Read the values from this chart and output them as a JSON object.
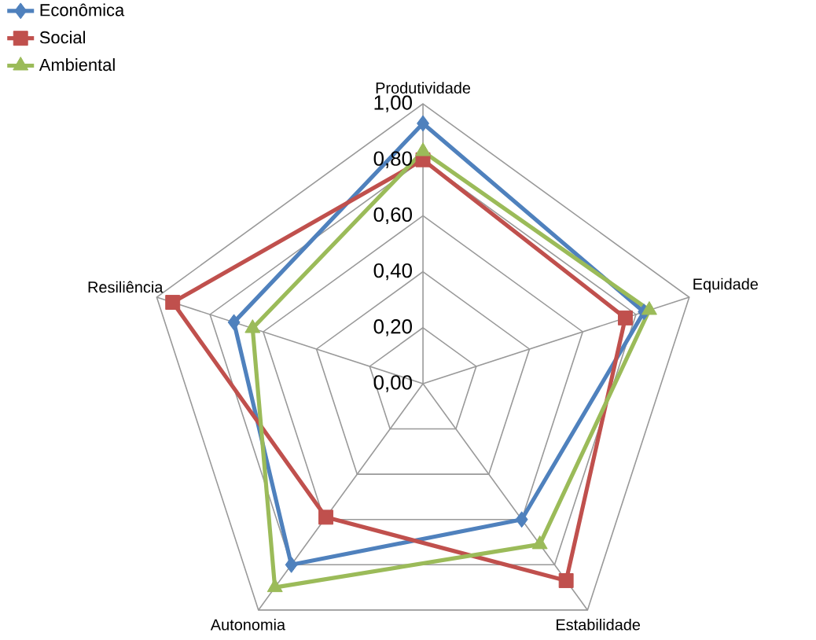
{
  "chart_data": {
    "type": "radar",
    "categories": [
      "Produtividade",
      "Equidade",
      "Estabilidade",
      "Autonomia",
      "Resiliência"
    ],
    "series": [
      {
        "name": "Econômica",
        "color": "#4f81bd",
        "marker": "diamond",
        "values": [
          0.93,
          0.83,
          0.6,
          0.8,
          0.71
        ]
      },
      {
        "name": "Social",
        "color": "#c0504d",
        "marker": "square",
        "values": [
          0.8,
          0.76,
          0.87,
          0.59,
          0.94
        ]
      },
      {
        "name": "Ambiental",
        "color": "#9bbb59",
        "marker": "triangle",
        "values": [
          0.83,
          0.85,
          0.71,
          0.9,
          0.64
        ]
      }
    ],
    "ylim": [
      0,
      1
    ],
    "yticks": [
      {
        "value": 0,
        "label": "0,00"
      },
      {
        "value": 0.2,
        "label": "0,20"
      },
      {
        "value": 0.4,
        "label": "0,40"
      },
      {
        "value": 0.6,
        "label": "0,60"
      },
      {
        "value": 0.8,
        "label": "0,80"
      },
      {
        "value": 1,
        "label": "1,00"
      }
    ],
    "grid": true,
    "legend": "top left"
  }
}
